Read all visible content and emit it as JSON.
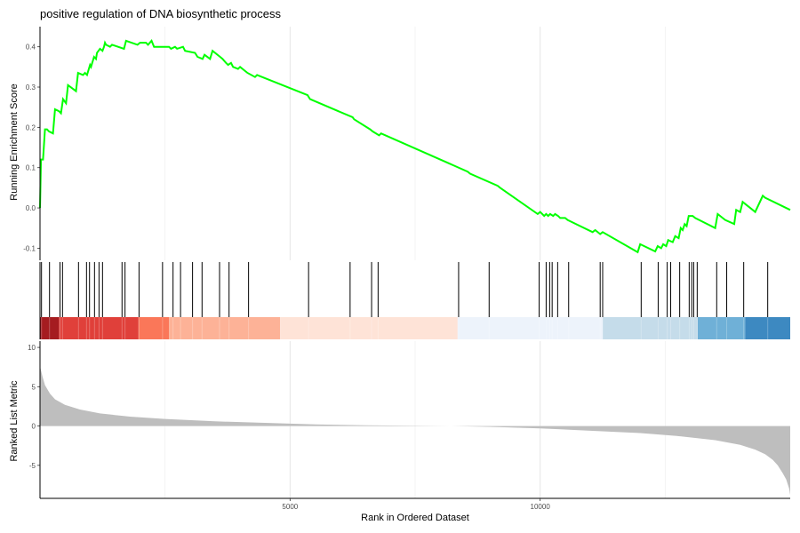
{
  "chart_data": {
    "type": "line",
    "title": "positive regulation of DNA biosynthetic process",
    "xlabel": "Rank in Ordered Dataset",
    "xlim": [
      0,
      15000
    ],
    "x_ticks": [
      5000,
      10000
    ],
    "x_tick_labels": [
      "5000",
      "10000"
    ],
    "panels": {
      "running_score": {
        "ylabel": "Running Enrichment Score",
        "ylim": [
          -0.13,
          0.45
        ],
        "y_ticks": [
          -0.1,
          0.0,
          0.1,
          0.2,
          0.3,
          0.4
        ],
        "y_tick_labels": [
          "-0.1",
          "0.0",
          "0.1",
          "0.2",
          "0.3",
          "0.4"
        ],
        "line_color": "#00ff00",
        "series": {
          "x": [
            0,
            20,
            60,
            100,
            140,
            180,
            260,
            300,
            380,
            420,
            460,
            520,
            560,
            720,
            760,
            860,
            900,
            940,
            1000,
            1020,
            1080,
            1120,
            1140,
            1200,
            1250,
            1280,
            1300,
            1320,
            1400,
            1440,
            1680,
            1720,
            1950,
            2000,
            2120,
            2160,
            2230,
            2280,
            2580,
            2620,
            2700,
            2740,
            2860,
            2900,
            3100,
            3150,
            3250,
            3290,
            3400,
            3450,
            3600,
            3650,
            3720,
            3760,
            3820,
            3860,
            3960,
            4000,
            4100,
            4150,
            4300,
            4340,
            5350,
            5400,
            6250,
            6280,
            6600,
            6650,
            6780,
            6820,
            8550,
            8600,
            9150,
            9200,
            9950,
            10000,
            10080,
            10120,
            10160,
            10200,
            10260,
            10300,
            10360,
            10400,
            10500,
            10550,
            11050,
            11100,
            11200,
            11250,
            11950,
            12000,
            12300,
            12350,
            12420,
            12460,
            12520,
            12560,
            12650,
            12700,
            12770,
            12810,
            12850,
            12890,
            12930,
            12970,
            13050,
            13100,
            13500,
            13550,
            13650,
            13700,
            13880,
            13920,
            14000,
            14050,
            14250,
            14300,
            14450,
            14500,
            15000
          ],
          "y": [
            0.0,
            0.12,
            0.12,
            0.195,
            0.195,
            0.19,
            0.185,
            0.245,
            0.24,
            0.235,
            0.27,
            0.26,
            0.305,
            0.29,
            0.335,
            0.33,
            0.335,
            0.33,
            0.355,
            0.35,
            0.375,
            0.37,
            0.385,
            0.395,
            0.39,
            0.4,
            0.41,
            0.405,
            0.4,
            0.405,
            0.395,
            0.415,
            0.405,
            0.41,
            0.41,
            0.405,
            0.415,
            0.4,
            0.4,
            0.395,
            0.4,
            0.395,
            0.4,
            0.39,
            0.385,
            0.375,
            0.37,
            0.38,
            0.37,
            0.39,
            0.375,
            0.37,
            0.36,
            0.355,
            0.36,
            0.35,
            0.345,
            0.35,
            0.34,
            0.335,
            0.325,
            0.33,
            0.28,
            0.27,
            0.225,
            0.22,
            0.195,
            0.19,
            0.18,
            0.185,
            0.09,
            0.085,
            0.055,
            0.05,
            -0.015,
            -0.01,
            -0.02,
            -0.015,
            -0.02,
            -0.015,
            -0.02,
            -0.015,
            -0.02,
            -0.025,
            -0.025,
            -0.03,
            -0.06,
            -0.055,
            -0.065,
            -0.06,
            -0.11,
            -0.09,
            -0.108,
            -0.095,
            -0.1,
            -0.09,
            -0.095,
            -0.08,
            -0.085,
            -0.07,
            -0.075,
            -0.05,
            -0.055,
            -0.04,
            -0.045,
            -0.02,
            -0.02,
            -0.025,
            -0.05,
            -0.015,
            -0.025,
            -0.03,
            -0.04,
            -0.005,
            -0.01,
            0.015,
            -0.005,
            -0.01,
            0.03,
            0.025,
            -0.005
          ]
        }
      },
      "hits": {
        "x": [
          30,
          190,
          400,
          450,
          770,
          930,
          990,
          1090,
          1180,
          1250,
          1640,
          1700,
          1980,
          2450,
          2660,
          2810,
          3050,
          3240,
          3590,
          3780,
          4170,
          5370,
          6200,
          6630,
          6760,
          8370,
          8980,
          9980,
          10120,
          10190,
          10240,
          10350,
          10570,
          11200,
          11250,
          12020,
          12360,
          12540,
          12610,
          12790,
          12980,
          13030,
          13070,
          13140,
          13530,
          13730,
          14070,
          14550
        ]
      },
      "ranked_metric": {
        "ylabel": "Ranked List Metric",
        "ylim": [
          -9.2,
          10.8
        ],
        "y_ticks": [
          -5,
          0,
          5,
          10
        ],
        "y_tick_labels": [
          "-5",
          "0",
          "5",
          "10"
        ],
        "fill_color": "#bebebe",
        "series": {
          "x": [
            0,
            50,
            100,
            200,
            300,
            500,
            800,
            1200,
            1800,
            2500,
            3500,
            4500,
            5500,
            6500,
            7500,
            8200,
            9000,
            10000,
            11000,
            12000,
            12800,
            13500,
            14000,
            14300,
            14500,
            14650,
            14750,
            14850,
            14920,
            14980,
            15000
          ],
          "y": [
            7.6,
            6.3,
            5.2,
            4.1,
            3.4,
            2.7,
            2.1,
            1.6,
            1.2,
            0.9,
            0.6,
            0.4,
            0.2,
            0.1,
            0.03,
            0.0,
            -0.1,
            -0.3,
            -0.6,
            -0.9,
            -1.3,
            -1.8,
            -2.4,
            -3.0,
            -3.6,
            -4.3,
            -5.0,
            -6.0,
            -6.8,
            -8.0,
            -8.8
          ]
        }
      }
    },
    "color_bar": {
      "segments": [
        {
          "x0": 0,
          "x1": 380,
          "color": "#a51c20"
        },
        {
          "x0": 380,
          "x1": 1970,
          "color": "#e0403a"
        },
        {
          "x0": 1970,
          "x1": 2580,
          "color": "#fa7759"
        },
        {
          "x0": 2580,
          "x1": 4800,
          "color": "#fdb297"
        },
        {
          "x0": 4800,
          "x1": 8350,
          "color": "#fee3d7"
        },
        {
          "x0": 8350,
          "x1": 11250,
          "color": "#edf3fb"
        },
        {
          "x0": 11250,
          "x1": 13150,
          "color": "#c5dcea"
        },
        {
          "x0": 13150,
          "x1": 14100,
          "color": "#6fb0d7"
        },
        {
          "x0": 14100,
          "x1": 15000,
          "color": "#3d89c1"
        }
      ]
    }
  }
}
